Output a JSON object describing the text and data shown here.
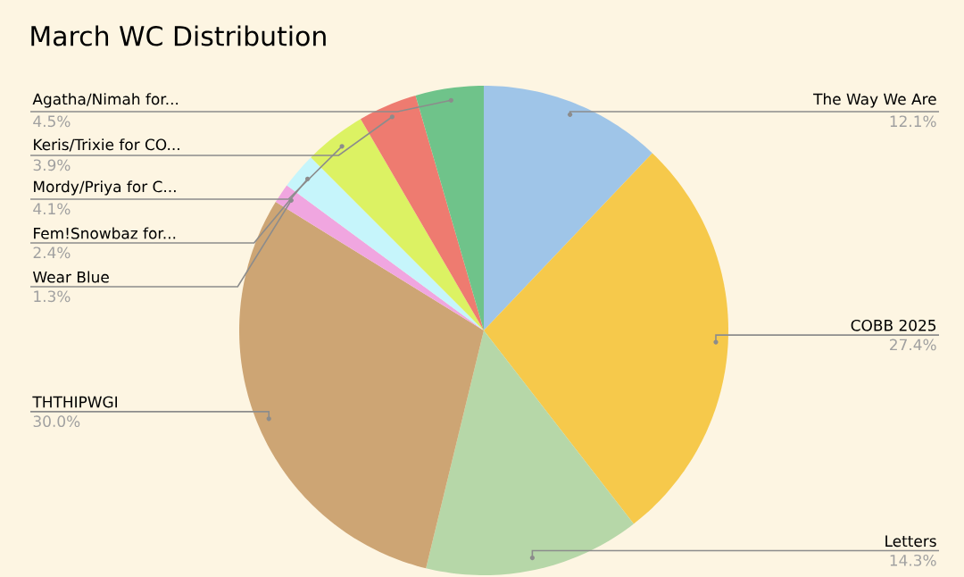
{
  "chart_data": {
    "type": "pie",
    "title": "March WC Distribution",
    "categories": [
      "The Way We Are",
      "COBB 2025",
      "Letters",
      "THTHIPWGI",
      "Wear Blue",
      "Fem!Snowbaz for...",
      "Mordy/Priya for C...",
      "Keris/Trixie for CO...",
      "Agatha/Nimah for..."
    ],
    "values": [
      12.1,
      27.4,
      14.3,
      30.0,
      1.3,
      2.4,
      4.1,
      3.9,
      4.5
    ],
    "value_labels": [
      "12.1%",
      "27.4%",
      "14.3%",
      "30.0%",
      "1.3%",
      "2.4%",
      "4.1%",
      "3.9%",
      "4.5%"
    ],
    "colors": [
      "#9fc5e8",
      "#f6c94b",
      "#b6d7a8",
      "#cda574",
      "#f0a6e0",
      "#c6f5fb",
      "#dcf263",
      "#ee7b70",
      "#6fc38a"
    ]
  }
}
